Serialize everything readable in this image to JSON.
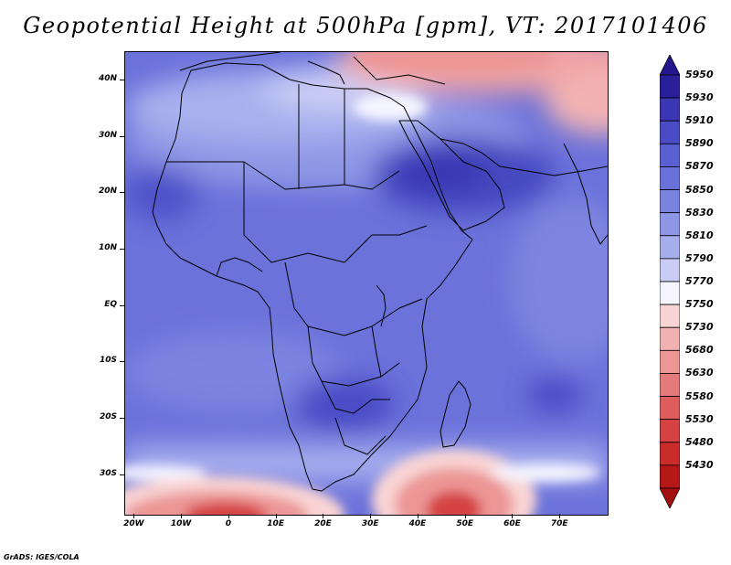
{
  "title": "Geopotential Height at 500hPa [gpm], VT: 2017101406",
  "credit": "GrADS: IGES/COLA",
  "map": {
    "region": "Africa and Arabian Peninsula",
    "lon_range": [
      -22,
      80
    ],
    "lat_range": [
      -37,
      45
    ],
    "lat_labels": [
      "40N",
      "30N",
      "20N",
      "10N",
      "EQ",
      "10S",
      "20S",
      "30S"
    ],
    "lat_values": [
      40,
      30,
      20,
      10,
      0,
      -10,
      -20,
      -30
    ],
    "lon_labels": [
      "20W",
      "10W",
      "0",
      "10E",
      "20E",
      "30E",
      "40E",
      "50E",
      "60E",
      "70E"
    ],
    "lon_values": [
      -20,
      -10,
      0,
      10,
      20,
      30,
      40,
      50,
      60,
      70
    ]
  },
  "colorbar": {
    "levels": [
      "5950",
      "5930",
      "5910",
      "5890",
      "5870",
      "5850",
      "5830",
      "5810",
      "5790",
      "5770",
      "5750",
      "5730",
      "5680",
      "5630",
      "5580",
      "5530",
      "5480",
      "5430"
    ],
    "colors": [
      "#2a1f9a",
      "#3a36b4",
      "#4a4bc6",
      "#5a5fd2",
      "#6a71da",
      "#7b83e0",
      "#8e96e6",
      "#a7aeee",
      "#c9cdf5",
      "#f5f5ff",
      "#f9d4d4",
      "#f3b2b2",
      "#ec9696",
      "#e57a7a",
      "#de5c5c",
      "#d64242",
      "#c92a2a",
      "#b61818"
    ],
    "top_arrow_color": "#24188e",
    "bottom_arrow_color": "#a31010"
  }
}
